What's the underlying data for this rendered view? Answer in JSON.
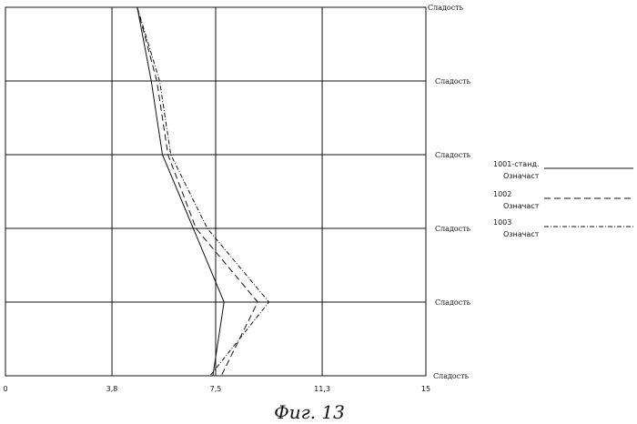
{
  "caption": "Фиг. 13",
  "chart_data": {
    "type": "line",
    "orientation": "horizontal-profile",
    "xlim": [
      0,
      15
    ],
    "x_ticks": [
      {
        "value": 0,
        "label": "0"
      },
      {
        "value": 3.8,
        "label": "3,8"
      },
      {
        "value": 7.5,
        "label": "7,5"
      },
      {
        "value": 11.3,
        "label": "11,3"
      },
      {
        "value": 15,
        "label": "15"
      }
    ],
    "categories": [
      "Сладость",
      "Сладость",
      "Сладость",
      "Сладость",
      "Сладость",
      "Сладость"
    ],
    "series": [
      {
        "name": "1001-станд.",
        "name2": "Означаст",
        "dash": "solid",
        "values": [
          4.7,
          5.2,
          5.6,
          6.7,
          7.8,
          7.4
        ]
      },
      {
        "name": "1002",
        "name2": "Означаст",
        "dash": "dashed",
        "values": [
          4.7,
          5.4,
          5.8,
          6.8,
          9.0,
          7.7
        ]
      },
      {
        "name": "1003",
        "name2": "Означаст",
        "dash": "dashdot",
        "values": [
          4.7,
          5.5,
          5.9,
          7.2,
          9.4,
          7.3
        ]
      }
    ],
    "grid": true,
    "legend_position": "right"
  }
}
